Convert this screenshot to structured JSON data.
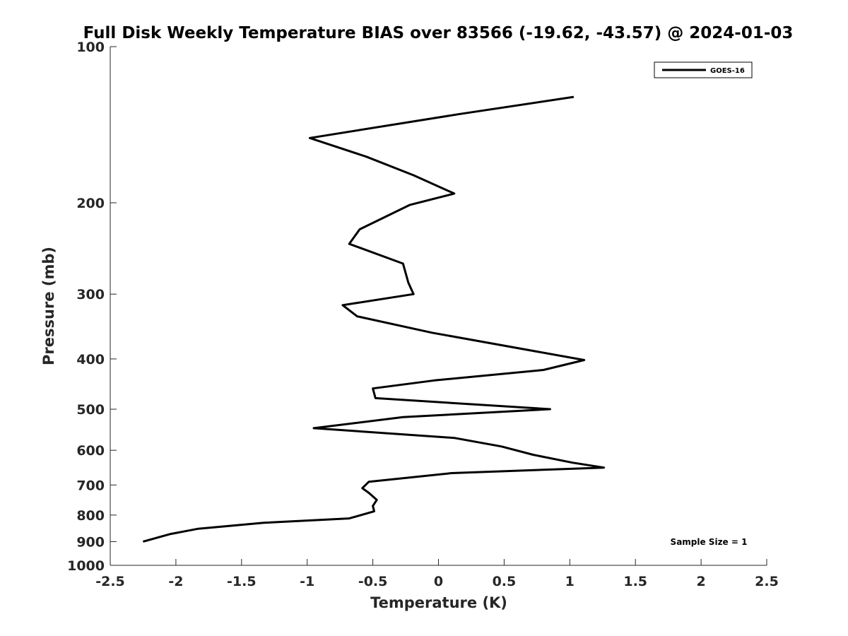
{
  "chart_data": {
    "type": "line",
    "title": "Full Disk Weekly Temperature BIAS over 83566 (-19.62, -43.57) @ 2024-01-03",
    "xlabel": "Temperature (K)",
    "ylabel": "Pressure (mb)",
    "xlim": [
      -2.5,
      2.5
    ],
    "ylim": [
      100,
      1000
    ],
    "y_scale": "log",
    "y_reversed": true,
    "x_ticks": [
      -2.5,
      -2,
      -1.5,
      -1,
      -0.5,
      0,
      0.5,
      1,
      1.5,
      2,
      2.5
    ],
    "x_tick_labels": [
      "-2.5",
      "-2",
      "-1.5",
      "-1",
      "-0.5",
      "0",
      "0.5",
      "1",
      "1.5",
      "2",
      "2.5"
    ],
    "y_ticks": [
      100,
      200,
      300,
      400,
      500,
      600,
      700,
      800,
      900,
      1000
    ],
    "y_tick_labels": [
      "100",
      "200",
      "300",
      "400",
      "500",
      "600",
      "700",
      "800",
      "900",
      "1000"
    ],
    "grid": false,
    "legend_position": "top-right",
    "series": [
      {
        "name": "GOES-16",
        "color": "#000000",
        "points": [
          {
            "x": 1.03,
            "p": 125
          },
          {
            "x": 0.15,
            "p": 135
          },
          {
            "x": -0.98,
            "p": 150
          },
          {
            "x": -0.55,
            "p": 163
          },
          {
            "x": -0.19,
            "p": 177
          },
          {
            "x": 0.12,
            "p": 192
          },
          {
            "x": -0.22,
            "p": 202
          },
          {
            "x": -0.6,
            "p": 225
          },
          {
            "x": -0.68,
            "p": 240
          },
          {
            "x": -0.27,
            "p": 262
          },
          {
            "x": -0.23,
            "p": 285
          },
          {
            "x": -0.19,
            "p": 300
          },
          {
            "x": -0.73,
            "p": 315
          },
          {
            "x": -0.62,
            "p": 331
          },
          {
            "x": -0.05,
            "p": 356
          },
          {
            "x": 1.11,
            "p": 402
          },
          {
            "x": 0.8,
            "p": 420
          },
          {
            "x": -0.03,
            "p": 440
          },
          {
            "x": -0.5,
            "p": 456
          },
          {
            "x": -0.48,
            "p": 476
          },
          {
            "x": 0.85,
            "p": 500
          },
          {
            "x": -0.27,
            "p": 518
          },
          {
            "x": -0.95,
            "p": 544
          },
          {
            "x": 0.12,
            "p": 568
          },
          {
            "x": 0.48,
            "p": 590
          },
          {
            "x": 0.72,
            "p": 612
          },
          {
            "x": 1.02,
            "p": 634
          },
          {
            "x": 1.26,
            "p": 648
          },
          {
            "x": 0.1,
            "p": 664
          },
          {
            "x": -0.53,
            "p": 690
          },
          {
            "x": -0.58,
            "p": 710
          },
          {
            "x": -0.53,
            "p": 725
          },
          {
            "x": -0.47,
            "p": 748
          },
          {
            "x": -0.5,
            "p": 768
          },
          {
            "x": -0.49,
            "p": 787
          },
          {
            "x": -0.68,
            "p": 812
          },
          {
            "x": -1.33,
            "p": 828
          },
          {
            "x": -1.83,
            "p": 850
          },
          {
            "x": -2.04,
            "p": 870
          },
          {
            "x": -2.25,
            "p": 900
          }
        ]
      }
    ]
  },
  "annotations": {
    "sample_size": "Sample Size = 1"
  }
}
